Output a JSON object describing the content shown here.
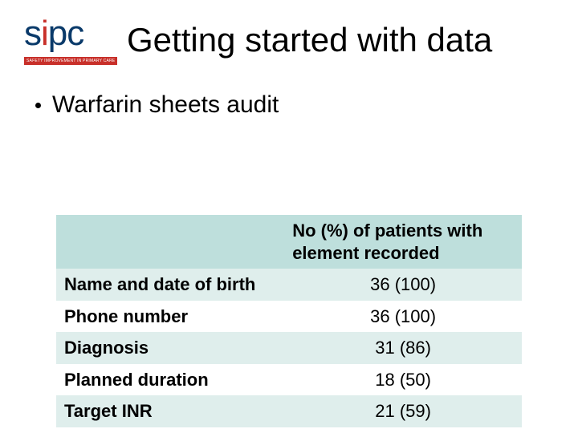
{
  "logo": {
    "text_part1": "s",
    "text_dot": "i",
    "text_part2": "pc",
    "tagline": "SAFETY IMPROVEMENT IN PRIMARY CARE"
  },
  "title": "Getting started with data",
  "bullet": "Warfarin sheets audit",
  "table": {
    "header_label": "No (%) of patients with element recorded",
    "rows": [
      {
        "label": "Name and date of birth",
        "value": "36 (100)"
      },
      {
        "label": "Phone number",
        "value": "36 (100)"
      },
      {
        "label": "Diagnosis",
        "value": "31 (86)"
      },
      {
        "label": "Planned duration",
        "value": "18 (50)"
      },
      {
        "label": "Target INR",
        "value": "21 (59)"
      }
    ],
    "colors": {
      "header_bg": "#bedfdc",
      "band_bg": "#dfeeec",
      "plain_bg": "#ffffff",
      "text": "#000000"
    },
    "fontsize": 22,
    "label_weight": 700,
    "value_weight": 400
  }
}
